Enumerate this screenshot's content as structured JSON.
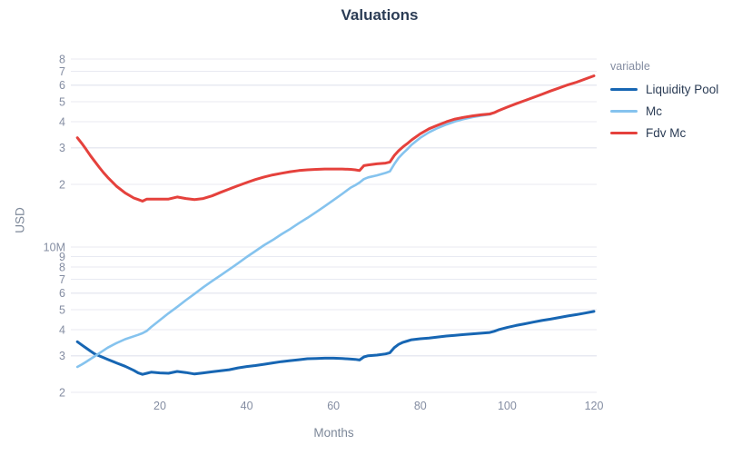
{
  "chart_data": {
    "type": "line",
    "title": "Valuations",
    "xlabel": "Months",
    "ylabel": "USD",
    "legend_title": "variable",
    "y_scale": "log",
    "y_unit": "millions USD",
    "x_range": [
      0,
      121
    ],
    "y_range_millions": [
      1.9,
      85
    ],
    "grid": "horizontal-only",
    "legend_position": "right",
    "x_ticks": [
      20,
      40,
      60,
      80,
      100,
      120
    ],
    "y_ticks": [
      {
        "value": 80,
        "label": "8"
      },
      {
        "value": 70,
        "label": "7"
      },
      {
        "value": 60,
        "label": "6"
      },
      {
        "value": 50,
        "label": "5"
      },
      {
        "value": 40,
        "label": "4"
      },
      {
        "value": 30,
        "label": "3"
      },
      {
        "value": 20,
        "label": "2"
      },
      {
        "value": 10,
        "label": "10M"
      },
      {
        "value": 9,
        "label": "9"
      },
      {
        "value": 8,
        "label": "8"
      },
      {
        "value": 7,
        "label": "7"
      },
      {
        "value": 6,
        "label": "6"
      },
      {
        "value": 5,
        "label": "5"
      },
      {
        "value": 4,
        "label": "4"
      },
      {
        "value": 3,
        "label": "3"
      },
      {
        "value": 2,
        "label": "2"
      }
    ],
    "x": [
      1,
      2,
      3,
      4,
      5,
      6,
      7,
      8,
      10,
      12,
      14,
      15,
      16,
      17,
      18,
      20,
      22,
      24,
      26,
      28,
      30,
      32,
      34,
      36,
      38,
      40,
      42,
      44,
      46,
      48,
      50,
      52,
      54,
      56,
      58,
      60,
      62,
      64,
      65,
      66,
      67,
      68,
      70,
      72,
      73,
      74,
      75,
      76,
      77,
      78,
      80,
      82,
      84,
      86,
      88,
      90,
      92,
      94,
      96,
      97,
      98,
      100,
      102,
      104,
      106,
      108,
      110,
      112,
      114,
      116,
      118,
      120
    ],
    "series": [
      {
        "name": "Liquidity Pool",
        "color": "#1766b3",
        "stroke_width": 3,
        "values": [
          3.5,
          3.38,
          3.27,
          3.16,
          3.06,
          3.0,
          2.94,
          2.88,
          2.77,
          2.67,
          2.55,
          2.48,
          2.44,
          2.47,
          2.5,
          2.48,
          2.47,
          2.52,
          2.49,
          2.45,
          2.48,
          2.51,
          2.54,
          2.57,
          2.62,
          2.66,
          2.69,
          2.73,
          2.77,
          2.81,
          2.84,
          2.87,
          2.9,
          2.91,
          2.92,
          2.92,
          2.91,
          2.89,
          2.88,
          2.86,
          2.96,
          3.0,
          3.02,
          3.06,
          3.1,
          3.28,
          3.4,
          3.48,
          3.53,
          3.58,
          3.62,
          3.65,
          3.69,
          3.73,
          3.76,
          3.79,
          3.82,
          3.85,
          3.88,
          3.93,
          4.0,
          4.1,
          4.19,
          4.27,
          4.35,
          4.43,
          4.5,
          4.58,
          4.66,
          4.73,
          4.81,
          4.9
        ]
      },
      {
        "name": "Mc",
        "color": "#85c3ee",
        "stroke_width": 2.6,
        "values": [
          2.65,
          2.72,
          2.8,
          2.89,
          2.98,
          3.08,
          3.18,
          3.28,
          3.45,
          3.6,
          3.72,
          3.78,
          3.85,
          3.95,
          4.12,
          4.45,
          4.8,
          5.15,
          5.55,
          5.95,
          6.4,
          6.85,
          7.3,
          7.8,
          8.35,
          8.95,
          9.55,
          10.2,
          10.8,
          11.5,
          12.2,
          13.0,
          13.8,
          14.7,
          15.7,
          16.8,
          18.0,
          19.3,
          19.8,
          20.4,
          21.2,
          21.6,
          22.1,
          22.7,
          23.1,
          25.0,
          26.8,
          28.2,
          29.5,
          31.0,
          33.5,
          35.6,
          37.3,
          38.8,
          40.1,
          41.2,
          42.1,
          42.8,
          43.4,
          44.2,
          45.2,
          47.0,
          48.8,
          50.5,
          52.3,
          54.2,
          56.2,
          58.2,
          60.2,
          62.0,
          64.2,
          66.5
        ]
      },
      {
        "name": "Fdv Mc",
        "color": "#e5413c",
        "stroke_width": 3,
        "values": [
          33.5,
          31.5,
          29.5,
          27.5,
          25.8,
          24.2,
          22.8,
          21.6,
          19.6,
          18.2,
          17.2,
          16.9,
          16.6,
          17.0,
          17.0,
          17.0,
          17.0,
          17.4,
          17.1,
          16.9,
          17.1,
          17.6,
          18.3,
          19.0,
          19.7,
          20.4,
          21.1,
          21.7,
          22.2,
          22.6,
          23.0,
          23.3,
          23.5,
          23.6,
          23.7,
          23.7,
          23.7,
          23.6,
          23.5,
          23.3,
          24.6,
          24.8,
          25.1,
          25.3,
          25.6,
          27.5,
          29.0,
          30.3,
          31.4,
          32.7,
          35.0,
          37.0,
          38.5,
          40.0,
          41.2,
          42.0,
          42.7,
          43.2,
          43.6,
          44.2,
          45.2,
          47.0,
          48.8,
          50.5,
          52.3,
          54.2,
          56.2,
          58.2,
          60.2,
          62.0,
          64.2,
          66.5
        ]
      }
    ]
  }
}
